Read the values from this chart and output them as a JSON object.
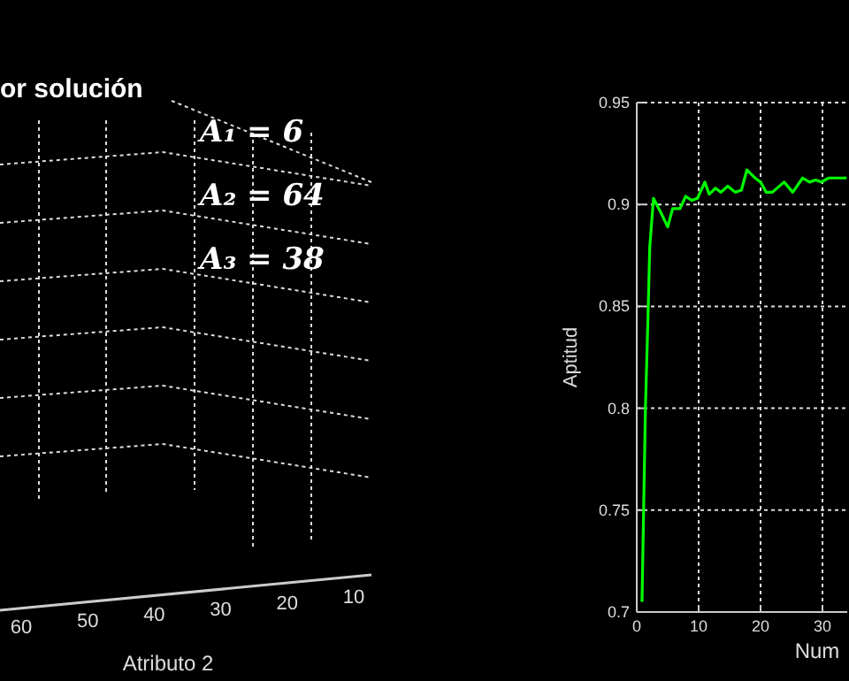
{
  "chart_data": [
    {
      "type": "other",
      "title": "or solución",
      "xlabel": "Atributo 2",
      "categories": [
        "60",
        "50",
        "40",
        "30",
        "20",
        "10"
      ],
      "annotations": [
        "A₁ = 6",
        "A₂ = 64",
        "A₃ = 38"
      ]
    },
    {
      "type": "line",
      "ylabel": "Aptitud",
      "xlabel": "Num",
      "xlim": [
        0,
        34
      ],
      "xticks": [
        0,
        10,
        20,
        30
      ],
      "ylim": [
        0.7,
        0.95
      ],
      "yticks": [
        0.7,
        0.75,
        0.8,
        0.85,
        0.9,
        0.95
      ],
      "grid": true,
      "series": [
        {
          "color": "#00ff00",
          "x": [
            0.85,
            1.4,
            1.8,
            2.1,
            2.7,
            3.9,
            5.0,
            5.8,
            7,
            7.9,
            8.9,
            9.8,
            11,
            11.7,
            12.7,
            13.6,
            14.7,
            15.9,
            16.9,
            17.8,
            19.1,
            20,
            20.9,
            21.9,
            23.8,
            25.2,
            26.8,
            27.9,
            28.9,
            29.8,
            31,
            32.9,
            33.9
          ],
          "values": [
            0.705,
            0.8,
            0.843,
            0.879,
            0.903,
            0.896,
            0.889,
            0.898,
            0.898,
            0.904,
            0.902,
            0.903,
            0.911,
            0.905,
            0.908,
            0.906,
            0.909,
            0.906,
            0.907,
            0.917,
            0.913,
            0.911,
            0.906,
            0.906,
            0.911,
            0.906,
            0.913,
            0.911,
            0.912,
            0.911,
            0.913,
            0.913,
            0.913
          ]
        }
      ]
    }
  ]
}
